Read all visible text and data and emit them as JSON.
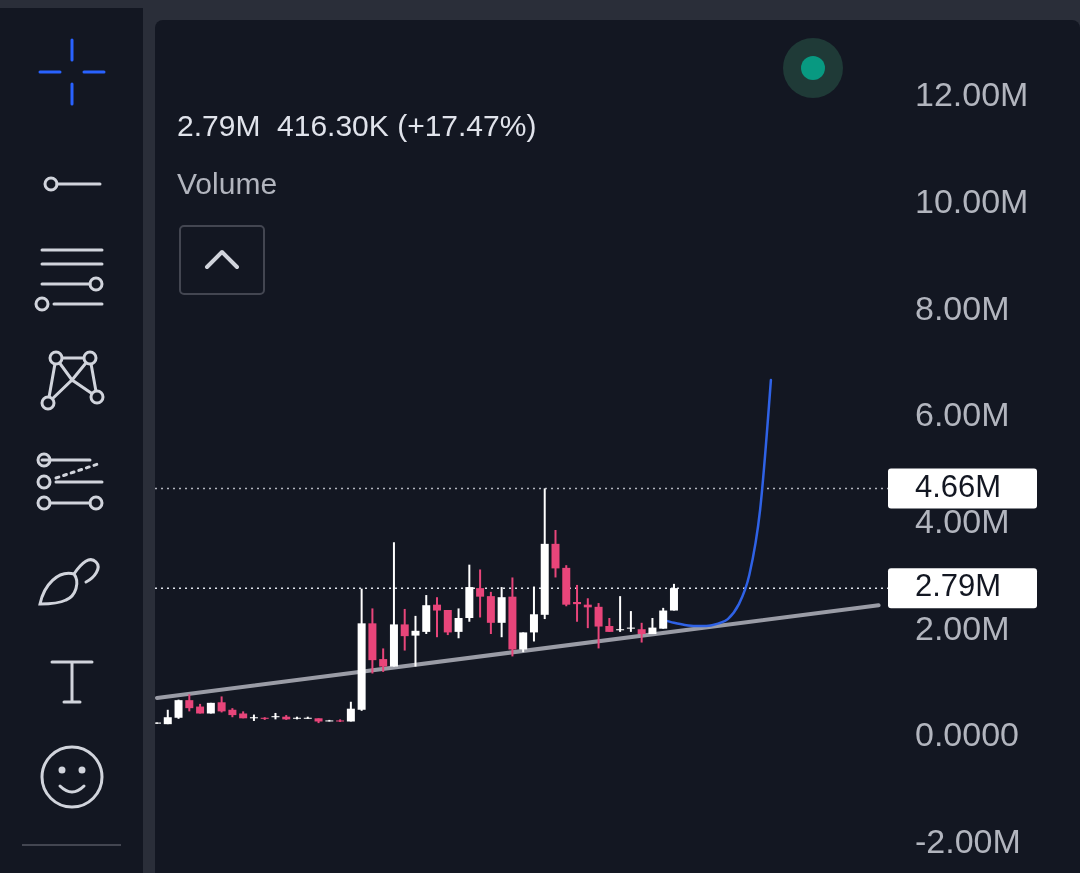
{
  "chart_data": {
    "type": "candlestick",
    "annotations": [
      "2.79M  416.30K (+17.47%)",
      "Volume"
    ],
    "categories": [
      null,
      null,
      null,
      null,
      null,
      null,
      null,
      null,
      null,
      null,
      null,
      null,
      null,
      null,
      null,
      null,
      null,
      null,
      null,
      null,
      null,
      null,
      null,
      null,
      null,
      null,
      null,
      null,
      null,
      null,
      null,
      null,
      null,
      null,
      null,
      null,
      null,
      null,
      null,
      null,
      null,
      null,
      null,
      null,
      null,
      null,
      null,
      null,
      null,
      null,
      null,
      null,
      null,
      null,
      null,
      null,
      null,
      null,
      null,
      null,
      null,
      null,
      null,
      null,
      null,
      null,
      null,
      null
    ],
    "ohlc": [
      [
        0.25,
        0.27,
        0.25,
        0.27
      ],
      [
        0.24,
        0.51,
        0.24,
        0.37
      ],
      [
        0.36,
        0.7,
        0.34,
        0.69
      ],
      [
        0.69,
        0.8,
        0.48,
        0.54
      ],
      [
        0.57,
        0.62,
        0.44,
        0.44
      ],
      [
        0.44,
        0.64,
        0.44,
        0.64
      ],
      [
        0.65,
        0.76,
        0.46,
        0.48
      ],
      [
        0.51,
        0.54,
        0.37,
        0.41
      ],
      [
        0.44,
        0.48,
        0.35,
        0.35
      ],
      [
        0.35,
        0.42,
        0.3,
        0.37
      ],
      [
        0.36,
        0.37,
        0.32,
        0.34
      ],
      [
        0.37,
        0.45,
        0.33,
        0.39
      ],
      [
        0.38,
        0.41,
        0.32,
        0.33
      ],
      [
        0.35,
        0.38,
        0.33,
        0.36
      ],
      [
        0.35,
        0.38,
        0.34,
        0.36
      ],
      [
        0.35,
        0.35,
        0.26,
        0.29
      ],
      [
        0.3,
        0.32,
        0.29,
        0.31
      ],
      [
        0.31,
        0.33,
        0.28,
        0.29
      ],
      [
        0.29,
        0.66,
        0.29,
        0.53
      ],
      [
        0.51,
        2.78,
        0.49,
        2.13
      ],
      [
        2.13,
        2.41,
        1.19,
        1.44
      ],
      [
        1.46,
        1.66,
        1.22,
        1.32
      ],
      [
        1.32,
        3.65,
        1.32,
        2.11
      ],
      [
        2.11,
        2.4,
        1.62,
        1.89
      ],
      [
        1.9,
        2.27,
        1.32,
        1.99
      ],
      [
        1.97,
        2.66,
        1.93,
        2.47
      ],
      [
        2.48,
        2.62,
        1.87,
        2.37
      ],
      [
        2.38,
        2.38,
        1.91,
        1.96
      ],
      [
        1.97,
        2.41,
        1.85,
        2.23
      ],
      [
        2.23,
        3.23,
        2.16,
        2.81
      ],
      [
        2.79,
        3.14,
        2.24,
        2.63
      ],
      [
        2.64,
        2.72,
        1.93,
        2.14
      ],
      [
        2.14,
        2.81,
        1.87,
        2.62
      ],
      [
        2.63,
        2.99,
        1.51,
        1.64
      ],
      [
        1.64,
        1.96,
        1.59,
        1.96
      ],
      [
        1.96,
        2.82,
        1.79,
        2.3
      ],
      [
        2.29,
        4.66,
        2.21,
        3.62
      ],
      [
        3.62,
        3.88,
        2.99,
        3.16
      ],
      [
        3.17,
        3.22,
        2.45,
        2.48
      ],
      [
        2.53,
        2.85,
        2.16,
        2.49
      ],
      [
        2.48,
        2.6,
        2.04,
        2.43
      ],
      [
        2.44,
        2.51,
        1.66,
        2.07
      ],
      [
        2.08,
        2.23,
        1.97,
        1.97
      ],
      [
        2.0,
        2.64,
        1.97,
        2.02
      ],
      [
        2.03,
        2.36,
        1.97,
        2.05
      ],
      [
        2.02,
        2.14,
        1.77,
        1.93
      ],
      [
        1.93,
        2.23,
        1.93,
        2.05
      ],
      [
        2.03,
        2.42,
        2.03,
        2.37
      ],
      [
        2.37,
        2.87,
        2.37,
        2.79
      ],
      null,
      null,
      null,
      null,
      null,
      null,
      null,
      null,
      null,
      null,
      null,
      null,
      null,
      null,
      null,
      null,
      null,
      null,
      null
    ],
    "colors": [
      "#ffffff",
      "#ffffff",
      "#ffffff",
      "#e8457a",
      "#e8457a",
      "#ffffff",
      "#e8457a",
      "#e8457a",
      "#e8457a",
      "#ffffff",
      "#e8457a",
      "#ffffff",
      "#e8457a",
      "#ffffff",
      "#ffffff",
      "#e8457a",
      "#ffffff",
      "#e8457a",
      "#ffffff",
      "#ffffff",
      "#e8457a",
      "#e8457a",
      "#ffffff",
      "#e8457a",
      "#ffffff",
      "#ffffff",
      "#e8457a",
      "#e8457a",
      "#ffffff",
      "#ffffff",
      "#e8457a",
      "#e8457a",
      "#ffffff",
      "#e8457a",
      "#ffffff",
      "#ffffff",
      "#ffffff",
      "#e8457a",
      "#e8457a",
      "#e8457a",
      "#e8457a",
      "#e8457a",
      "#e8457a",
      "#ffffff",
      "#ffffff",
      "#e8457a",
      "#ffffff",
      "#ffffff",
      "#ffffff",
      null,
      null,
      null,
      null,
      null,
      null,
      null,
      null,
      null,
      null,
      null,
      null,
      null,
      null,
      null,
      null,
      null,
      null,
      null
    ],
    "series": [
      {
        "type": "line",
        "color": "#9a9ca6",
        "values": [
          0.73,
          null,
          null,
          null,
          null,
          null,
          null,
          null,
          null,
          null,
          null,
          null,
          null,
          null,
          null,
          null,
          null,
          null,
          null,
          null,
          null,
          null,
          null,
          null,
          null,
          null,
          null,
          null,
          null,
          null,
          null,
          null,
          null,
          null,
          null,
          null,
          null,
          null,
          null,
          null,
          null,
          null,
          null,
          null,
          null,
          null,
          null,
          null,
          null,
          null,
          null,
          null,
          null,
          null,
          null,
          null,
          null,
          null,
          null,
          null,
          null,
          null,
          null,
          null,
          null,
          null,
          null,
          2.47
        ]
      },
      {
        "type": "line",
        "color": "#2f62e6",
        "values": [
          null,
          null,
          null,
          null,
          null,
          null,
          null,
          null,
          null,
          null,
          null,
          null,
          null,
          null,
          null,
          null,
          null,
          null,
          null,
          null,
          null,
          null,
          null,
          null,
          null,
          null,
          null,
          null,
          null,
          null,
          null,
          null,
          null,
          null,
          null,
          null,
          null,
          null,
          null,
          null,
          null,
          null,
          null,
          null,
          null,
          null,
          null,
          2.19,
          2.14,
          2.1,
          2.08,
          2.08,
          2.12,
          2.21,
          2.48,
          3.04,
          4.26,
          6.69,
          null,
          null,
          null,
          null,
          null,
          null,
          null,
          null,
          null,
          null
        ]
      }
    ],
    "ylim": [
      -2.55,
      13.44
    ],
    "yticks": [
      {
        "value": -2,
        "label": "-2.00M"
      },
      {
        "value": 0,
        "label": "0.0000"
      },
      {
        "value": 2,
        "label": "2.00M"
      },
      {
        "value": 4,
        "label": "4.00M"
      },
      {
        "value": 6,
        "label": "6.00M"
      },
      {
        "value": 8,
        "label": "8.00M"
      },
      {
        "value": 10,
        "label": "10.00M"
      },
      {
        "value": 12,
        "label": "12.00M"
      }
    ],
    "tick_labels": "y",
    "grid": false,
    "ref_lines": [
      {
        "axis": "y",
        "value": 4.66,
        "label": "4.66M",
        "line_style": "dotted",
        "color": "#b2b5be"
      },
      {
        "axis": "y",
        "value": 2.79,
        "label": "2.79M",
        "line_style": "dotted",
        "color": "#e0e3eb"
      }
    ]
  }
}
